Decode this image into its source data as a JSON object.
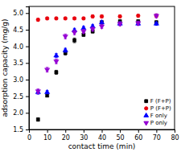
{
  "chart_data": {
    "type": "scatter",
    "xlabel": "contact time (min)",
    "ylabel": "adsorption capacity (mg/g)",
    "x": [
      5,
      10,
      15,
      20,
      25,
      30,
      35,
      40,
      50,
      60,
      70
    ],
    "series": [
      {
        "name": "F (F+P)",
        "color": "black",
        "marker": "square",
        "values": [
          1.8,
          2.52,
          3.22,
          3.8,
          4.18,
          4.35,
          4.45,
          4.72,
          4.75,
          4.75,
          4.72
        ],
        "errors": [
          0.05,
          0.04,
          0.06,
          0.06,
          0.07,
          0.05,
          0.05,
          0.05,
          0.05,
          0.05,
          0.05
        ]
      },
      {
        "name": "P (F+P)",
        "color": "#e8000d",
        "marker": "circle",
        "values": [
          4.8,
          4.84,
          4.84,
          4.84,
          4.84,
          4.84,
          4.9,
          4.9,
          4.9,
          4.92,
          4.92
        ],
        "errors": [
          0.04,
          0.03,
          0.03,
          0.03,
          0.03,
          0.03,
          0.04,
          0.04,
          0.04,
          0.04,
          0.04
        ]
      },
      {
        "name": "F only",
        "color": "blue",
        "marker": "triangle-up",
        "values": [
          2.62,
          2.62,
          3.72,
          3.88,
          4.48,
          4.55,
          4.6,
          4.72,
          4.68,
          4.68,
          4.68
        ],
        "errors": [
          0.06,
          0.05,
          0.06,
          0.06,
          0.06,
          0.05,
          0.05,
          0.05,
          0.05,
          0.05,
          0.05
        ]
      },
      {
        "name": "P only",
        "color": "#9400d3",
        "marker": "triangle-down",
        "values": [
          2.65,
          3.3,
          3.55,
          4.3,
          4.42,
          4.45,
          4.52,
          4.6,
          4.68,
          4.7,
          4.92
        ],
        "errors": [
          0.07,
          0.07,
          0.07,
          0.07,
          0.07,
          0.06,
          0.06,
          0.06,
          0.06,
          0.06,
          0.06
        ]
      }
    ],
    "xlim": [
      0,
      80
    ],
    "ylim": [
      1.5,
      5.2
    ],
    "xticks": [
      0,
      10,
      20,
      30,
      40,
      50,
      60,
      70,
      80
    ],
    "yticks": [
      1.5,
      {
        "value": 2.0,
        "label": "2.0"
      },
      2.5,
      {
        "value": 3.0,
        "label": "3.0"
      },
      3.5,
      {
        "value": 4.0,
        "label": "4.0"
      },
      4.5,
      {
        "value": 5.0,
        "label": "5.0"
      }
    ],
    "legend": "lower right",
    "grid": false
  }
}
